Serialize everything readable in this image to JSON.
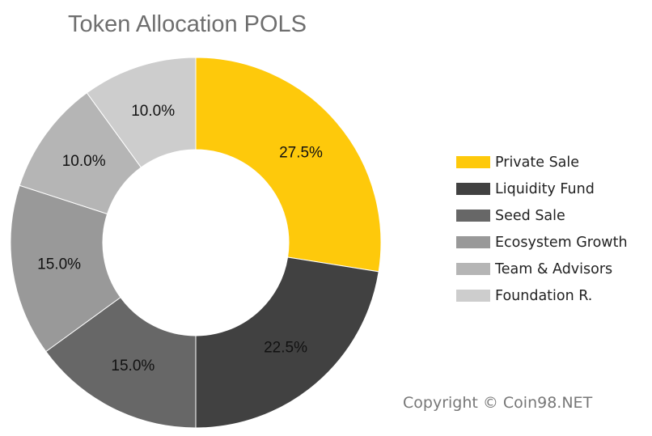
{
  "chart_data": {
    "type": "pie",
    "title": "Token Allocation POLS",
    "donut": true,
    "legend_position": "right",
    "categories": [
      "Private Sale",
      "Liquidity Fund",
      "Seed Sale",
      "Ecosystem Growth",
      "Team & Advisors",
      "Foundation R."
    ],
    "values": [
      27.5,
      22.5,
      15.0,
      15.0,
      10.0,
      10.0
    ],
    "data_labels": [
      "27.5%",
      "22.5%",
      "15.0%",
      "15.0%",
      "10.0%",
      "10.0%"
    ],
    "colors": [
      "#fec90b",
      "#414141",
      "#676767",
      "#999999",
      "#b5b5b5",
      "#cdcdcd"
    ]
  },
  "footer": {
    "copyright": "Copyright © Coin98.NET"
  }
}
